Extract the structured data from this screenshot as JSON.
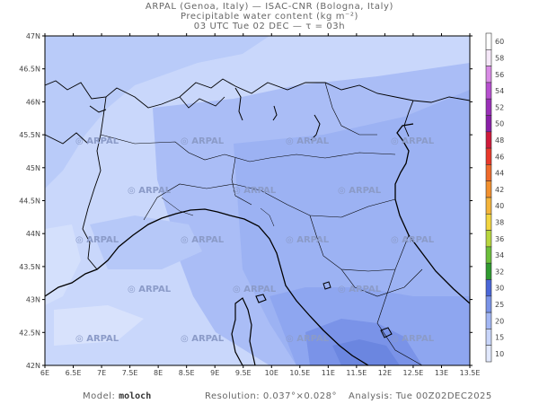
{
  "header": {
    "line1": "ARPAL (Genoa, Italy)  —  ISAC-CNR (Bologna, Italy)",
    "line2": "Precipitable water content (kg m⁻²)",
    "line3": "03 UTC Tue 02 DEC  —  τ = 03h"
  },
  "map": {
    "lat_labels": [
      "47N",
      "46.5N",
      "46N",
      "45.5N",
      "45N",
      "44.5N",
      "44N",
      "43.5N",
      "43N",
      "42.5N",
      "42N"
    ],
    "lon_labels": [
      "6E",
      "6.5E",
      "7E",
      "7.5E",
      "8E",
      "8.5E",
      "9E",
      "9.5E",
      "10E",
      "10.5E",
      "11E",
      "11.5E",
      "12E",
      "12.5E",
      "13E",
      "13.5E"
    ],
    "watermark": "ARPAL",
    "colors": {
      "land_light": "#c9d7fb",
      "mid": "#aabdf6",
      "dark": "#8ea6f0",
      "darker": "#7a93e8",
      "darkest": "#6b86e0"
    }
  },
  "colorbar": {
    "labels": [
      "60",
      "58",
      "56",
      "54",
      "52",
      "50",
      "48",
      "46",
      "44",
      "42",
      "40",
      "38",
      "36",
      "34",
      "32",
      "30",
      "25",
      "20",
      "15",
      "10"
    ],
    "colors": [
      "#ffffff",
      "#f5e8f8",
      "#d98be6",
      "#b74fd0",
      "#9a2fb8",
      "#8a1fa8",
      "#d01a3a",
      "#e9382a",
      "#ef6a2a",
      "#f2902e",
      "#f4b43a",
      "#f2d53f",
      "#b8d63e",
      "#6cbf3a",
      "#2f9a30",
      "#4a66d8",
      "#7a93e8",
      "#a3b7f4",
      "#c8d5fa",
      "#e2e9fd"
    ]
  },
  "footer": {
    "model_label": "Model:",
    "model_value": "moloch",
    "resolution_label": "Resolution:",
    "resolution_value": "0.037°×0.028°",
    "analysis_label": "Analysis:",
    "analysis_value": "Tue 00Z02DEC2025"
  }
}
